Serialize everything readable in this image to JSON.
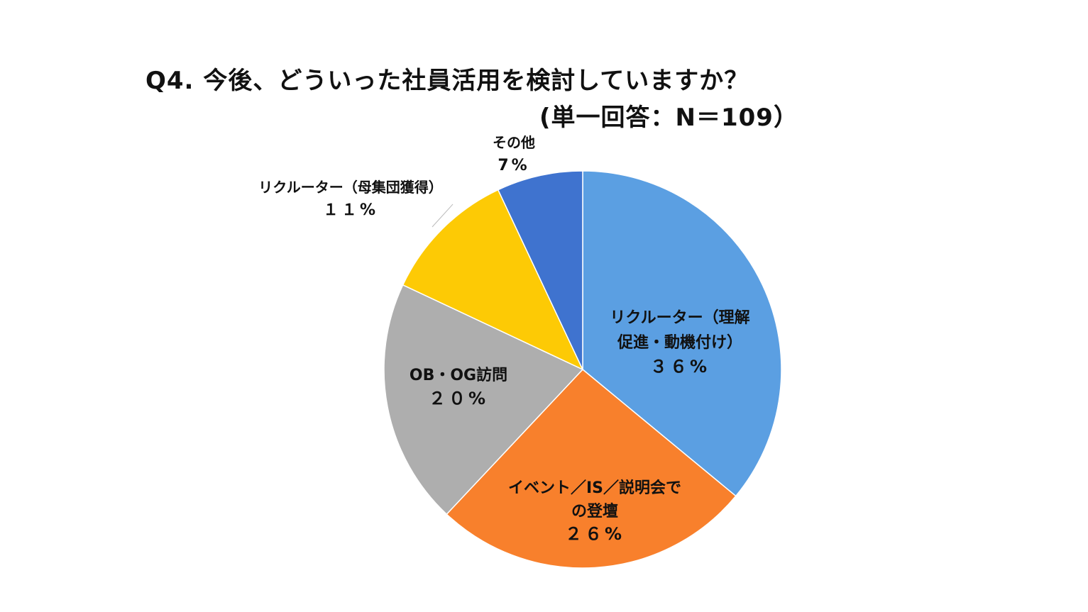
{
  "chart_data": {
    "type": "pie",
    "title": "Q4. 今後、どういった社員活用を検討していますか？",
    "subtitle": "(単一回答：N＝109）",
    "slices": [
      {
        "label_lines": [
          "リクルーター（理解",
          "促進・動機付け）"
        ],
        "value_label": "３６%",
        "value": 36,
        "color": "#5b9fe2"
      },
      {
        "label_lines": [
          "イベント／IS／説明会で",
          "の登壇"
        ],
        "value_label": "２６%",
        "value": 26,
        "color": "#f8802c"
      },
      {
        "label_lines": [
          "OB・OG訪問"
        ],
        "value_label": "２０%",
        "value": 20,
        "color": "#aeaeae"
      },
      {
        "label_lines": [
          "リクルーター（母集団獲得）"
        ],
        "value_label": "１１%",
        "value": 11,
        "color": "#fdca05"
      },
      {
        "label_lines": [
          "その他"
        ],
        "value_label": "7%",
        "value": 7,
        "color": "#3f73cf"
      }
    ]
  }
}
